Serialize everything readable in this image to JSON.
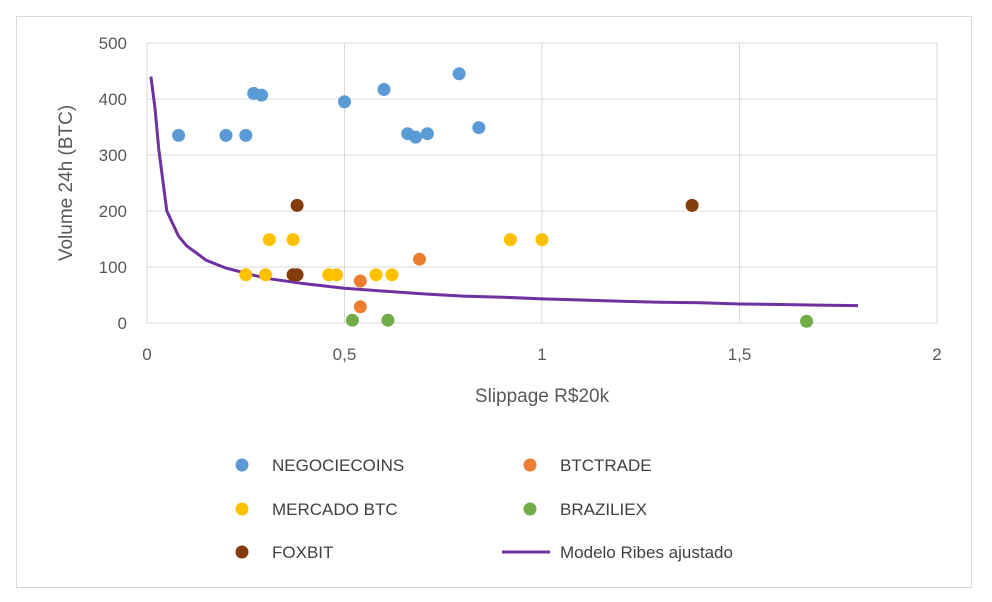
{
  "chart_data": {
    "type": "scatter",
    "title": "",
    "xlabel": "Slippage R$20k",
    "ylabel": "Volume 24h (BTC)",
    "xlim": [
      0,
      2
    ],
    "ylim": [
      0,
      500
    ],
    "x_ticks": [
      "0",
      "0,5",
      "1",
      "1,5",
      "2"
    ],
    "y_ticks": [
      "0",
      "100",
      "200",
      "300",
      "400",
      "500"
    ],
    "grid": true,
    "legend_position": "bottom",
    "series": [
      {
        "name": "NEGOCIECOINS",
        "kind": "scatter",
        "color": "#5b9bd5",
        "points": [
          [
            0.08,
            335
          ],
          [
            0.2,
            335
          ],
          [
            0.25,
            335
          ],
          [
            0.27,
            410
          ],
          [
            0.29,
            407
          ],
          [
            0.5,
            395
          ],
          [
            0.6,
            417
          ],
          [
            0.66,
            338
          ],
          [
            0.68,
            332
          ],
          [
            0.71,
            338
          ],
          [
            0.79,
            445
          ],
          [
            0.84,
            349
          ]
        ]
      },
      {
        "name": "BTCTRADE",
        "kind": "scatter",
        "color": "#ed7d31",
        "points": [
          [
            0.54,
            75
          ],
          [
            0.54,
            29
          ],
          [
            0.69,
            114
          ]
        ]
      },
      {
        "name": "MERCADO BTC",
        "kind": "scatter",
        "color": "#ffc000",
        "points": [
          [
            0.25,
            86
          ],
          [
            0.3,
            86
          ],
          [
            0.31,
            149
          ],
          [
            0.37,
            149
          ],
          [
            0.46,
            86
          ],
          [
            0.48,
            86
          ],
          [
            0.58,
            86
          ],
          [
            0.62,
            86
          ],
          [
            0.92,
            149
          ],
          [
            1.0,
            149
          ]
        ]
      },
      {
        "name": "BRAZILIEX",
        "kind": "scatter",
        "color": "#70ad47",
        "points": [
          [
            0.52,
            5
          ],
          [
            0.61,
            5
          ],
          [
            1.67,
            3
          ]
        ]
      },
      {
        "name": "FOXBIT",
        "kind": "scatter",
        "color": "#843c0c",
        "points": [
          [
            0.37,
            86
          ],
          [
            0.38,
            86
          ],
          [
            0.38,
            210
          ],
          [
            1.38,
            210
          ]
        ]
      },
      {
        "name": "Modelo Ribes ajustado",
        "kind": "line",
        "color": "#7030a0",
        "points": [
          [
            0.01,
            440
          ],
          [
            0.02,
            385
          ],
          [
            0.03,
            310
          ],
          [
            0.05,
            200
          ],
          [
            0.08,
            155
          ],
          [
            0.1,
            138
          ],
          [
            0.15,
            112
          ],
          [
            0.2,
            98
          ],
          [
            0.3,
            80
          ],
          [
            0.4,
            70
          ],
          [
            0.5,
            62
          ],
          [
            0.6,
            57
          ],
          [
            0.7,
            52
          ],
          [
            0.8,
            48
          ],
          [
            0.9,
            46
          ],
          [
            1.0,
            43
          ],
          [
            1.1,
            41
          ],
          [
            1.2,
            39
          ],
          [
            1.3,
            37
          ],
          [
            1.4,
            36
          ],
          [
            1.5,
            34
          ],
          [
            1.6,
            33
          ],
          [
            1.7,
            32
          ],
          [
            1.8,
            31
          ]
        ]
      }
    ]
  }
}
